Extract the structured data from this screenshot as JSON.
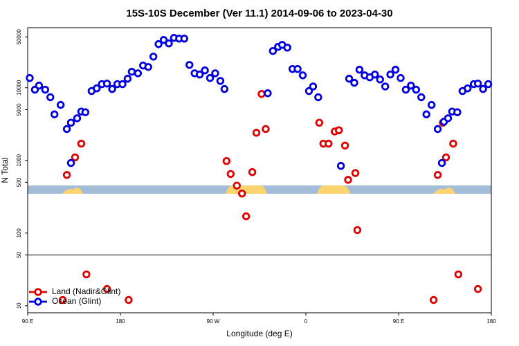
{
  "chart_data": {
    "type": "scatter",
    "title": "15S-10S December (Ver 11.1)   2014-09-06 to 2023-04-30",
    "x_label": "Longitude (deg E)",
    "y_label": "N Total",
    "log_y": true,
    "legend": "bottom-left",
    "xlim": [
      90,
      540
    ],
    "ylim": [
      8,
      67000
    ],
    "xticks": [
      {
        "value": 90,
        "label": "90 E"
      },
      180,
      {
        "value": 270,
        "label": "90 W"
      },
      {
        "value": 360,
        "label": "0"
      },
      {
        "value": 450,
        "label": "90 E"
      },
      {
        "value": 540,
        "label": "180"
      }
    ],
    "yticks": [
      10,
      50,
      100,
      500,
      1000,
      5000,
      10000,
      50000
    ],
    "series": [
      {
        "name": "Land (Nadir&Glint)",
        "color": "#e00000",
        "x": [
          128,
          132,
          136,
          142,
          283,
          287,
          293,
          298,
          302,
          308,
          312,
          317,
          321,
          373,
          377,
          382,
          388,
          392,
          398,
          401,
          408,
          410,
          488,
          493,
          496,
          503,
          124,
          147,
          167,
          188,
          484,
          508,
          527
        ],
        "values": [
          630,
          3300,
          1100,
          1700,
          980,
          650,
          450,
          350,
          170,
          690,
          2400,
          8200,
          2700,
          3300,
          1700,
          1700,
          2500,
          2600,
          1600,
          540,
          670,
          110,
          630,
          3300,
          1100,
          1700,
          12,
          27,
          17,
          12,
          12,
          27,
          17
        ]
      },
      {
        "name": "Ocean (Glint)",
        "color": "#0000e0",
        "x": [
          92,
          97,
          101,
          107,
          112,
          116,
          122,
          128,
          132,
          132,
          138,
          142,
          146,
          152,
          157,
          162,
          167,
          172,
          177,
          182,
          187,
          191,
          197,
          202,
          207,
          212,
          217,
          222,
          227,
          232,
          237,
          242,
          247,
          252,
          257,
          262,
          267,
          272,
          277,
          281,
          323,
          328,
          333,
          337,
          342,
          347,
          352,
          357,
          363,
          367,
          372,
          394,
          402,
          407,
          412,
          417,
          422,
          427,
          432,
          437,
          442,
          447,
          452,
          457,
          462,
          467,
          472,
          477,
          482,
          488,
          492,
          494,
          498,
          502,
          507,
          512,
          517,
          523,
          527,
          532,
          537
        ],
        "values": [
          13600,
          9400,
          10700,
          9400,
          7400,
          4300,
          5800,
          2700,
          920,
          3300,
          3800,
          4700,
          4600,
          9000,
          9800,
          11200,
          11400,
          9600,
          11200,
          11200,
          13300,
          16600,
          15800,
          20200,
          19300,
          26800,
          39800,
          45400,
          40700,
          48500,
          47400,
          47400,
          20600,
          15800,
          15200,
          17300,
          13600,
          15800,
          12400,
          9600,
          8400,
          32000,
          36500,
          38900,
          35600,
          18100,
          18100,
          14800,
          9000,
          10400,
          7400,
          840,
          13300,
          11700,
          17700,
          14800,
          13900,
          15200,
          13000,
          10400,
          15200,
          17700,
          13600,
          9400,
          10700,
          9400,
          7400,
          4300,
          5800,
          2700,
          920,
          3400,
          3800,
          4700,
          4600,
          9000,
          9800,
          11200,
          11400,
          9600,
          11200
        ]
      }
    ]
  }
}
